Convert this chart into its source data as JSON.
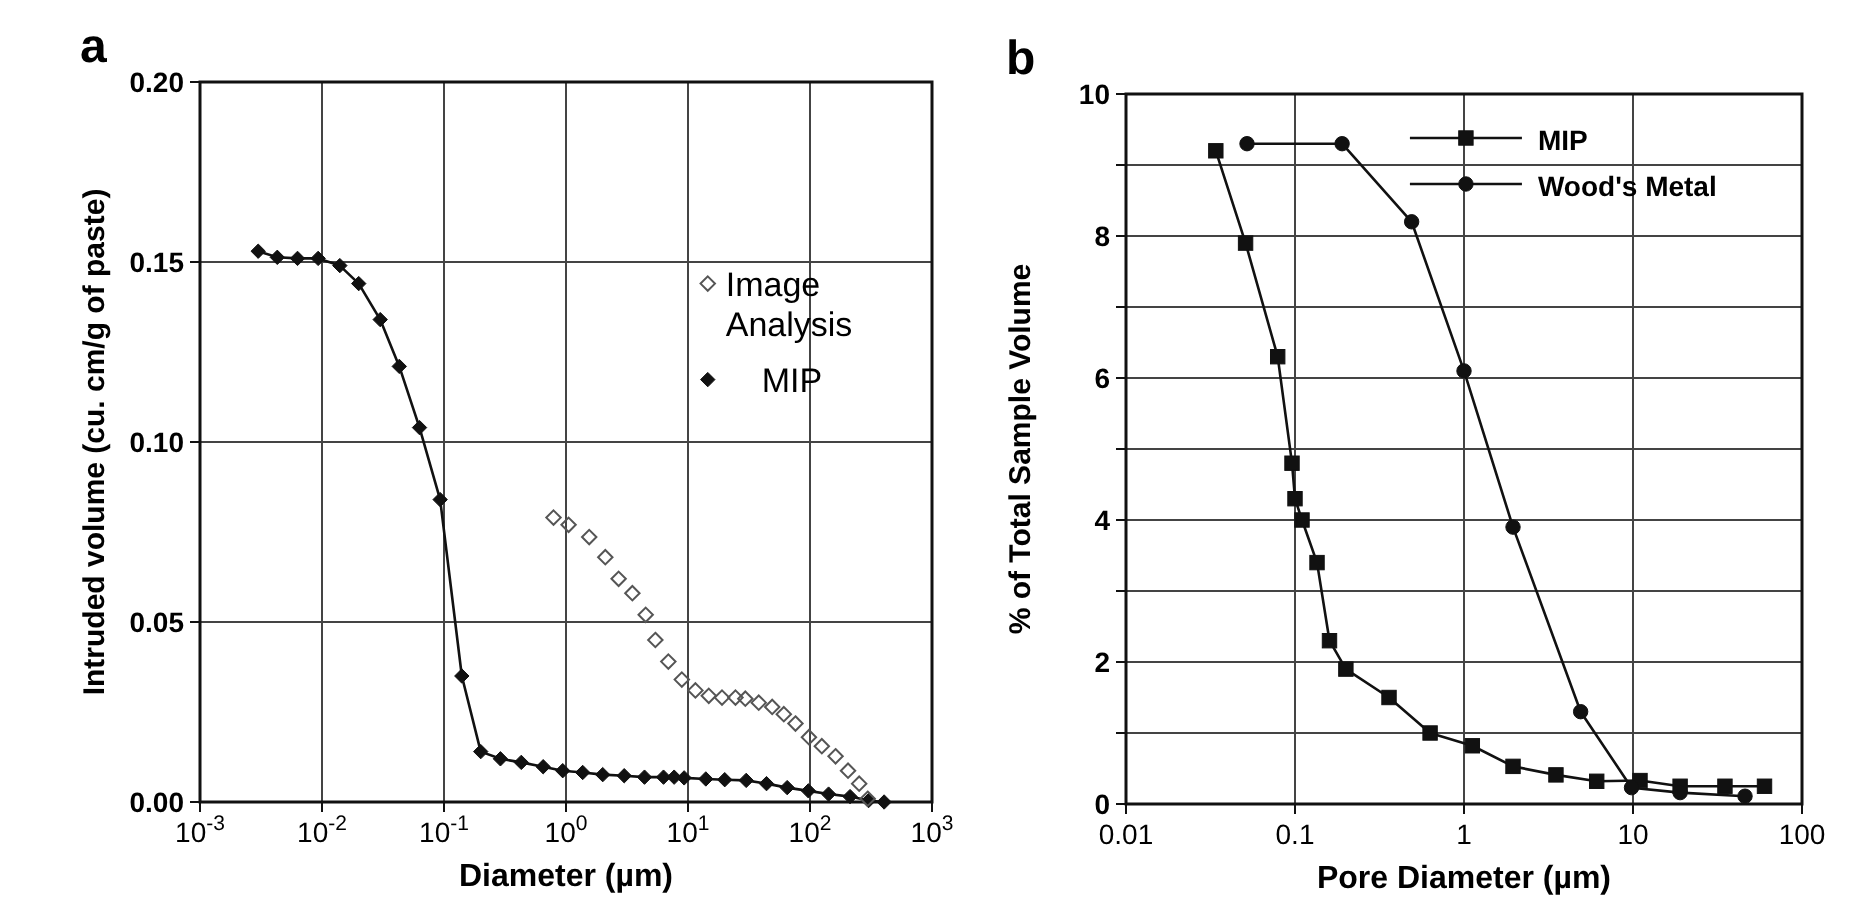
{
  "chart_data": [
    {
      "type": "line",
      "title": "a",
      "xlabel": "Diameter (µm)",
      "ylabel": "Intruded volume (cu. cm/g of paste)",
      "log": "x",
      "xlim": [
        0.001,
        1000
      ],
      "xticks": [
        {
          "value": 0.001,
          "label": "10$^{-3}$"
        },
        {
          "value": 0.01,
          "label": "10$^{-2}$"
        },
        {
          "value": 0.1,
          "label": "10$^{-1}$"
        },
        {
          "value": 1,
          "label": "10$^{0}$"
        },
        {
          "value": 10,
          "label": "10$^{1}$"
        },
        {
          "value": 100,
          "label": "10$^{2}$"
        },
        {
          "value": 1000,
          "label": "10$^{3}$"
        }
      ],
      "ylim": [
        0,
        0.2
      ],
      "yticks": [
        {
          "value": 0,
          "label": "0.00"
        },
        {
          "value": 0.05,
          "label": "0.05"
        },
        {
          "value": 0.1,
          "label": "0.10"
        },
        {
          "value": 0.15,
          "label": "0.15"
        },
        {
          "value": 0.2,
          "label": "0.20"
        }
      ],
      "grid": true,
      "legend": "top right",
      "series": [
        {
          "name": "Image Analysis",
          "type": "scatter",
          "marker": "diamond",
          "color": "#555555",
          "x": [
            0.79,
            1.05,
            1.55,
            2.1,
            2.7,
            3.5,
            4.5,
            5.4,
            6.9,
            8.9,
            11.5,
            14.8,
            19,
            24.5,
            29.5,
            38,
            49,
            61,
            76,
            98,
            125,
            162,
            205,
            253,
            297
          ],
          "values": [
            0.079,
            0.077,
            0.0736,
            0.068,
            0.062,
            0.058,
            0.052,
            0.045,
            0.039,
            0.034,
            0.031,
            0.0295,
            0.029,
            0.029,
            0.0287,
            0.0276,
            0.0264,
            0.0244,
            0.0218,
            0.018,
            0.0155,
            0.0127,
            0.0087,
            0.0051,
            0.0009
          ]
        },
        {
          "name": "MIP",
          "type": "line",
          "marker": "diamond",
          "color": "#111111",
          "x": [
            0.003,
            0.0043,
            0.0063,
            0.0093,
            0.014,
            0.02,
            0.03,
            0.043,
            0.063,
            0.093,
            0.14,
            0.2,
            0.29,
            0.43,
            0.65,
            0.94,
            1.37,
            2,
            3,
            4.4,
            6.3,
            7.7,
            9.3,
            14,
            20,
            30,
            44,
            65,
            97,
            142,
            213,
            302,
            405
          ],
          "values": [
            0.153,
            0.1513,
            0.151,
            0.151,
            0.149,
            0.144,
            0.134,
            0.121,
            0.104,
            0.084,
            0.035,
            0.014,
            0.012,
            0.011,
            0.0098,
            0.0087,
            0.0082,
            0.0076,
            0.0073,
            0.0069,
            0.0069,
            0.0069,
            0.0067,
            0.0064,
            0.0062,
            0.006,
            0.0051,
            0.004,
            0.0031,
            0.0022,
            0.0015,
            0.0004,
            0
          ]
        }
      ]
    },
    {
      "type": "line",
      "title": "b",
      "xlabel": "Pore Diameter (µm)",
      "ylabel": "% of Total Sample Volume",
      "log": "x",
      "xlim": [
        0.01,
        100
      ],
      "xticks": [
        0.01,
        0.1,
        1,
        10,
        100
      ],
      "ylim": [
        0,
        10
      ],
      "yticks": [
        0,
        {
          "value": 1,
          "label": null
        },
        2,
        {
          "value": 3,
          "label": null
        },
        4,
        {
          "value": 5,
          "label": null
        },
        6,
        {
          "value": 7,
          "label": null
        },
        8,
        {
          "value": 9,
          "label": null
        },
        10
      ],
      "grid": true,
      "legend": "top right",
      "line_style": "solid",
      "series": [
        {
          "name": "MIP",
          "marker": "square",
          "color": "#111111",
          "x": [
            0.034,
            0.051,
            0.079,
            0.096,
            0.1,
            0.11,
            0.135,
            0.16,
            0.2,
            0.36,
            0.63,
            1.12,
            1.95,
            3.5,
            6.1,
            11,
            19,
            35,
            60
          ],
          "values": [
            9.2,
            7.9,
            6.3,
            4.8,
            4.3,
            4,
            3.4,
            2.3,
            1.9,
            1.5,
            1,
            0.82,
            0.53,
            0.41,
            0.32,
            0.33,
            0.25,
            0.25,
            0.25
          ]
        },
        {
          "name": "Wood's Metal",
          "marker": "circle",
          "color": "#111111",
          "x": [
            0.052,
            0.19,
            0.49,
            1,
            1.95,
            4.9,
            9.8,
            19,
            46
          ],
          "values": [
            9.3,
            9.3,
            8.2,
            6.1,
            3.9,
            1.3,
            0.23,
            0.16,
            0.11
          ]
        }
      ]
    }
  ]
}
